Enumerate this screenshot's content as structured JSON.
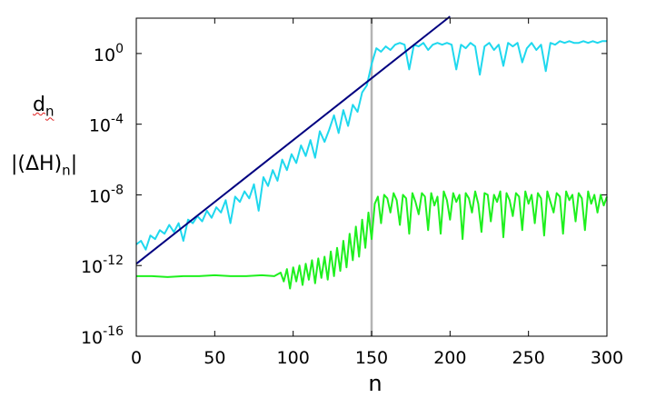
{
  "chart_data": {
    "type": "line",
    "xlabel": "n",
    "ylabel": {
      "line1": {
        "base": "d",
        "sub": "n"
      },
      "line2": {
        "prefix": "|(ΔH)",
        "sub": "n",
        "suffix": "|"
      }
    },
    "xlim": [
      0,
      300
    ],
    "x_ticks": [
      0,
      50,
      100,
      150,
      200,
      250,
      300
    ],
    "y_scale": "log",
    "ylim_exp": [
      -16,
      2
    ],
    "y_ticks": [
      {
        "base": "10",
        "exp": "0",
        "value_exp": 0
      },
      {
        "base": "10",
        "exp": "-4",
        "value_exp": -4
      },
      {
        "base": "10",
        "exp": "-8",
        "value_exp": -8
      },
      {
        "base": "10",
        "exp": "-12",
        "value_exp": -12
      },
      {
        "base": "10",
        "exp": "-16",
        "value_exp": -16
      }
    ],
    "grid": false,
    "reference_line": {
      "x": 150,
      "color": "#b4b4b4"
    },
    "series": [
      {
        "color": "#1fd8ee",
        "log10_points": [
          [
            0,
            -10.8
          ],
          [
            3,
            -10.6
          ],
          [
            6,
            -11.1
          ],
          [
            9,
            -10.3
          ],
          [
            12,
            -10.5
          ],
          [
            15,
            -10.0
          ],
          [
            18,
            -10.2
          ],
          [
            21,
            -9.7
          ],
          [
            24,
            -10.1
          ],
          [
            27,
            -9.6
          ],
          [
            30,
            -10.6
          ],
          [
            33,
            -9.4
          ],
          [
            36,
            -9.6
          ],
          [
            39,
            -9.2
          ],
          [
            42,
            -9.5
          ],
          [
            45,
            -8.9
          ],
          [
            48,
            -9.3
          ],
          [
            51,
            -8.7
          ],
          [
            54,
            -9.0
          ],
          [
            57,
            -8.3
          ],
          [
            60,
            -9.6
          ],
          [
            63,
            -8.1
          ],
          [
            66,
            -8.4
          ],
          [
            69,
            -7.8
          ],
          [
            72,
            -8.2
          ],
          [
            75,
            -7.4
          ],
          [
            78,
            -8.9
          ],
          [
            81,
            -7.0
          ],
          [
            84,
            -7.5
          ],
          [
            87,
            -6.6
          ],
          [
            90,
            -7.2
          ],
          [
            93,
            -6.0
          ],
          [
            96,
            -6.6
          ],
          [
            99,
            -5.7
          ],
          [
            102,
            -6.2
          ],
          [
            105,
            -5.2
          ],
          [
            108,
            -5.8
          ],
          [
            111,
            -4.9
          ],
          [
            114,
            -5.9
          ],
          [
            117,
            -4.4
          ],
          [
            120,
            -5.0
          ],
          [
            123,
            -4.3
          ],
          [
            126,
            -3.5
          ],
          [
            129,
            -4.5
          ],
          [
            132,
            -3.2
          ],
          [
            135,
            -4.1
          ],
          [
            138,
            -2.9
          ],
          [
            141,
            -3.3
          ],
          [
            144,
            -2.2
          ],
          [
            147,
            -1.8
          ],
          [
            150,
            -0.6
          ],
          [
            153,
            0.3
          ],
          [
            156,
            0.1
          ],
          [
            159,
            0.4
          ],
          [
            162,
            0.2
          ],
          [
            165,
            0.5
          ],
          [
            168,
            0.6
          ],
          [
            171,
            0.5
          ],
          [
            174,
            -0.9
          ],
          [
            177,
            0.5
          ],
          [
            180,
            0.4
          ],
          [
            183,
            0.6
          ],
          [
            186,
            0.2
          ],
          [
            189,
            0.5
          ],
          [
            192,
            0.6
          ],
          [
            195,
            0.5
          ],
          [
            198,
            0.6
          ],
          [
            201,
            0.5
          ],
          [
            204,
            -0.9
          ],
          [
            207,
            0.5
          ],
          [
            210,
            0.3
          ],
          [
            213,
            0.6
          ],
          [
            216,
            0.4
          ],
          [
            219,
            -1.2
          ],
          [
            222,
            0.4
          ],
          [
            225,
            0.6
          ],
          [
            228,
            0.2
          ],
          [
            231,
            0.5
          ],
          [
            234,
            -0.7
          ],
          [
            237,
            0.6
          ],
          [
            240,
            0.4
          ],
          [
            243,
            0.6
          ],
          [
            246,
            -0.5
          ],
          [
            249,
            0.3
          ],
          [
            252,
            0.6
          ],
          [
            255,
            0.2
          ],
          [
            258,
            0.5
          ],
          [
            261,
            -1.0
          ],
          [
            264,
            0.6
          ],
          [
            267,
            0.5
          ],
          [
            270,
            0.7
          ],
          [
            273,
            0.6
          ],
          [
            276,
            0.7
          ],
          [
            279,
            0.6
          ],
          [
            282,
            0.6
          ],
          [
            285,
            0.7
          ],
          [
            288,
            0.6
          ],
          [
            291,
            0.7
          ],
          [
            294,
            0.6
          ],
          [
            297,
            0.7
          ],
          [
            300,
            0.7
          ]
        ]
      },
      {
        "color": "#000080",
        "log10_points": [
          [
            0,
            -11.9
          ],
          [
            200,
            2.1
          ]
        ]
      },
      {
        "color": "#1ef01e",
        "log10_points": [
          [
            0,
            -12.6
          ],
          [
            10,
            -12.6
          ],
          [
            20,
            -12.65
          ],
          [
            30,
            -12.6
          ],
          [
            40,
            -12.6
          ],
          [
            50,
            -12.55
          ],
          [
            60,
            -12.6
          ],
          [
            70,
            -12.6
          ],
          [
            80,
            -12.55
          ],
          [
            88,
            -12.6
          ],
          [
            92,
            -12.4
          ],
          [
            94,
            -12.9
          ],
          [
            96,
            -12.2
          ],
          [
            98,
            -13.3
          ],
          [
            100,
            -12.1
          ],
          [
            102,
            -12.9
          ],
          [
            104,
            -12.0
          ],
          [
            106,
            -13.1
          ],
          [
            108,
            -11.9
          ],
          [
            110,
            -12.8
          ],
          [
            112,
            -11.7
          ],
          [
            114,
            -13.0
          ],
          [
            116,
            -11.6
          ],
          [
            118,
            -12.7
          ],
          [
            120,
            -11.5
          ],
          [
            122,
            -12.8
          ],
          [
            124,
            -11.2
          ],
          [
            126,
            -12.6
          ],
          [
            128,
            -11.0
          ],
          [
            130,
            -12.3
          ],
          [
            132,
            -10.6
          ],
          [
            134,
            -12.1
          ],
          [
            136,
            -10.2
          ],
          [
            138,
            -11.7
          ],
          [
            140,
            -9.8
          ],
          [
            142,
            -11.5
          ],
          [
            144,
            -9.4
          ],
          [
            146,
            -11.0
          ],
          [
            148,
            -9.0
          ],
          [
            150,
            -10.5
          ],
          [
            152,
            -8.5
          ],
          [
            154,
            -8.1
          ],
          [
            156,
            -9.6
          ],
          [
            158,
            -8.0
          ],
          [
            160,
            -8.2
          ],
          [
            162,
            -9.0
          ],
          [
            164,
            -7.9
          ],
          [
            166,
            -8.3
          ],
          [
            168,
            -9.7
          ],
          [
            170,
            -8.0
          ],
          [
            172,
            -8.2
          ],
          [
            174,
            -10.2
          ],
          [
            176,
            -7.9
          ],
          [
            178,
            -8.4
          ],
          [
            180,
            -9.1
          ],
          [
            182,
            -7.9
          ],
          [
            184,
            -8.1
          ],
          [
            186,
            -10.0
          ],
          [
            188,
            -7.9
          ],
          [
            190,
            -8.6
          ],
          [
            192,
            -8.1
          ],
          [
            194,
            -10.2
          ],
          [
            196,
            -7.8
          ],
          [
            198,
            -8.3
          ],
          [
            200,
            -9.4
          ],
          [
            202,
            -7.9
          ],
          [
            204,
            -8.4
          ],
          [
            206,
            -8.0
          ],
          [
            208,
            -10.5
          ],
          [
            210,
            -7.9
          ],
          [
            212,
            -8.2
          ],
          [
            214,
            -9.0
          ],
          [
            216,
            -7.8
          ],
          [
            218,
            -8.5
          ],
          [
            220,
            -10.1
          ],
          [
            222,
            -7.9
          ],
          [
            224,
            -8.0
          ],
          [
            226,
            -9.5
          ],
          [
            228,
            -8.0
          ],
          [
            230,
            -8.4
          ],
          [
            232,
            -7.8
          ],
          [
            234,
            -10.4
          ],
          [
            236,
            -7.9
          ],
          [
            238,
            -8.3
          ],
          [
            240,
            -9.2
          ],
          [
            242,
            -7.9
          ],
          [
            244,
            -8.1
          ],
          [
            246,
            -10.0
          ],
          [
            248,
            -7.8
          ],
          [
            250,
            -8.5
          ],
          [
            252,
            -8.0
          ],
          [
            254,
            -9.6
          ],
          [
            256,
            -7.9
          ],
          [
            258,
            -8.2
          ],
          [
            260,
            -10.3
          ],
          [
            262,
            -7.8
          ],
          [
            264,
            -8.4
          ],
          [
            266,
            -9.0
          ],
          [
            268,
            -7.9
          ],
          [
            270,
            -8.1
          ],
          [
            272,
            -10.2
          ],
          [
            274,
            -7.8
          ],
          [
            276,
            -8.3
          ],
          [
            278,
            -8.0
          ],
          [
            280,
            -9.5
          ],
          [
            282,
            -7.9
          ],
          [
            284,
            -8.2
          ],
          [
            286,
            -10.0
          ],
          [
            288,
            -7.8
          ],
          [
            290,
            -8.5
          ],
          [
            292,
            -8.0
          ],
          [
            294,
            -9.0
          ],
          [
            296,
            -8.0
          ],
          [
            298,
            -8.6
          ],
          [
            300,
            -8.1
          ]
        ]
      }
    ]
  }
}
